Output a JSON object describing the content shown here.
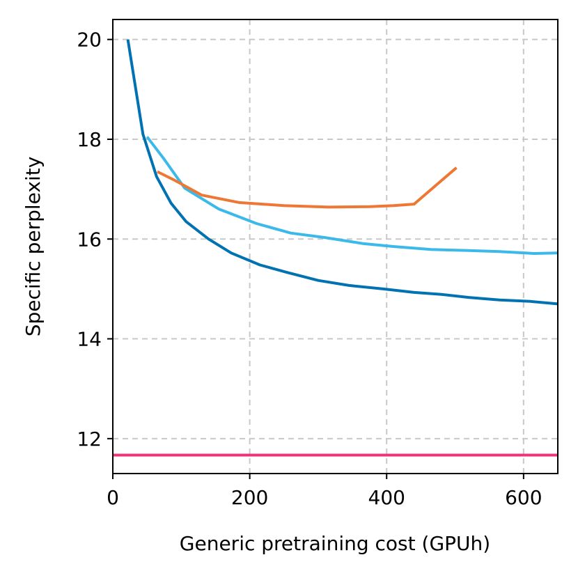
{
  "chart_data": {
    "type": "line",
    "title": "",
    "xlabel": "Generic pretraining cost (GPUh)",
    "ylabel": "Specific perplexity",
    "xlim": [
      0,
      650
    ],
    "ylim": [
      11.3,
      20.4
    ],
    "xticks": [
      0,
      200,
      400,
      600
    ],
    "yticks": [
      12,
      14,
      16,
      18,
      20
    ],
    "grid": true,
    "series": [
      {
        "name": "series-dark-blue",
        "color": "#0072b2",
        "x": [
          22,
          44,
          64,
          85,
          107,
          140,
          173,
          215,
          255,
          300,
          345,
          395,
          440,
          480,
          520,
          565,
          610,
          650
        ],
        "y": [
          20.0,
          18.1,
          17.25,
          16.72,
          16.35,
          16.0,
          15.72,
          15.48,
          15.33,
          15.17,
          15.07,
          15.0,
          14.93,
          14.89,
          14.83,
          14.78,
          14.75,
          14.7
        ]
      },
      {
        "name": "series-light-blue",
        "color": "#3ab9ea",
        "x": [
          50,
          75,
          105,
          155,
          210,
          260,
          310,
          365,
          410,
          465,
          520,
          565,
          615,
          650
        ],
        "y": [
          18.05,
          17.6,
          17.02,
          16.6,
          16.31,
          16.12,
          16.03,
          15.91,
          15.85,
          15.79,
          15.77,
          15.75,
          15.71,
          15.72
        ]
      },
      {
        "name": "series-orange",
        "color": "#ee7733",
        "x": [
          65,
          90,
          130,
          185,
          250,
          315,
          375,
          410,
          440,
          502
        ],
        "y": [
          17.35,
          17.18,
          16.88,
          16.73,
          16.67,
          16.64,
          16.65,
          16.67,
          16.7,
          17.43
        ]
      },
      {
        "name": "baseline-pink",
        "color": "#ee3377",
        "x": [
          0,
          650
        ],
        "y": [
          11.67,
          11.67
        ]
      }
    ]
  }
}
